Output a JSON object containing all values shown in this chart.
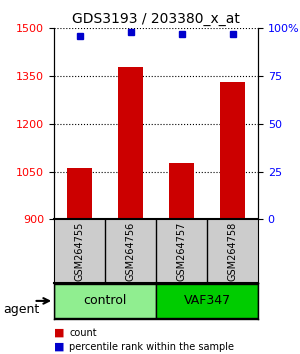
{
  "title": "GDS3193 / 203380_x_at",
  "samples": [
    "GSM264755",
    "GSM264756",
    "GSM264757",
    "GSM264758"
  ],
  "counts": [
    1063,
    1378,
    1078,
    1330
  ],
  "percentile_ranks": [
    96,
    98,
    97,
    97
  ],
  "ylim_left": [
    900,
    1500
  ],
  "ylim_right": [
    0,
    100
  ],
  "yticks_left": [
    900,
    1050,
    1200,
    1350,
    1500
  ],
  "yticks_right": [
    0,
    25,
    50,
    75,
    100
  ],
  "ytick_labels_right": [
    "0",
    "25",
    "50",
    "75",
    "100%"
  ],
  "bar_color": "#cc0000",
  "dot_color": "#0000cc",
  "grid_color": "#000000",
  "groups": [
    {
      "label": "control",
      "indices": [
        0,
        1
      ],
      "color": "#90ee90"
    },
    {
      "label": "VAF347",
      "indices": [
        2,
        3
      ],
      "color": "#00cc00"
    }
  ],
  "agent_label": "agent",
  "legend_count_label": "count",
  "legend_pct_label": "percentile rank within the sample",
  "background_color": "#ffffff",
  "plot_bg_color": "#ffffff",
  "sample_box_color": "#cccccc"
}
